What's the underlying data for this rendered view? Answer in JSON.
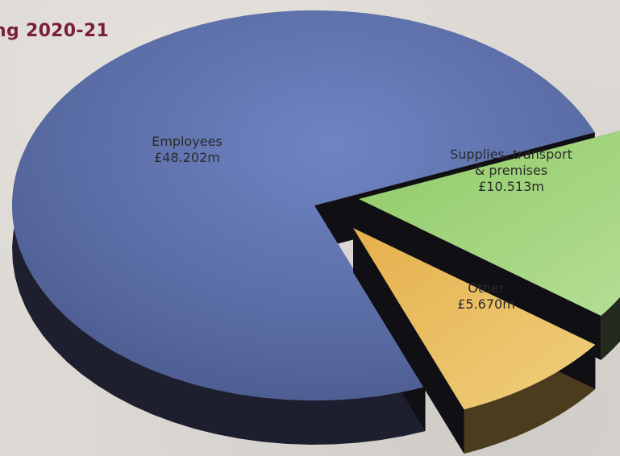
{
  "chart_data": {
    "type": "pie",
    "title": "ng 2020-21",
    "unit_prefix": "£",
    "unit_suffix": "m",
    "slices": [
      {
        "label_lines": [
          "Employees"
        ],
        "value_text": "£48.202m",
        "value": 48.202,
        "color": "#5b6fae",
        "side_color": "#1e1f2e",
        "exploded": false
      },
      {
        "label_lines": [
          "Supplies, transport",
          "& premises"
        ],
        "value_text": "£10.513m",
        "value": 10.513,
        "color": "#9fcf7a",
        "side_color": "#23291c",
        "exploded": true
      },
      {
        "label_lines": [
          "Other"
        ],
        "value_text": "£5.670m",
        "value": 5.67,
        "color": "#e8bd5e",
        "side_color": "#4a3c1c",
        "exploded": true
      }
    ],
    "colors": {
      "title": "#7a1f35",
      "label_text": "#2a2a2a",
      "background": "#dcd8d3"
    }
  }
}
